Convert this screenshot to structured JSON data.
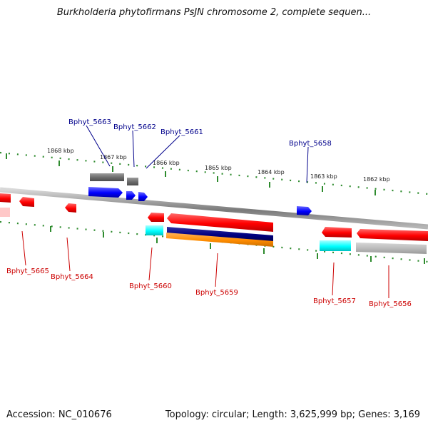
{
  "title": "Burkholderia phytofirmans PsJN chromosome 2, complete sequen...",
  "footer": {
    "accession": "Accession: NC_010676",
    "topology": "Topology: circular; Length: 3,625,999 bp; Genes: 3,169"
  },
  "colors": {
    "forward_gene": "#0000ff",
    "reverse_gene": "#ff0000",
    "forward_label": "#00008b",
    "reverse_label": "#cc0000",
    "tick": "#228b22",
    "grey_feature": "#777777",
    "cyan_feature": "#00ffff",
    "navy_feature": "#000080",
    "orange_feature": "#ff8c00"
  },
  "scale": {
    "ticks_kbp": [
      "1868 kbp",
      "1867 kbp",
      "1866 kbp",
      "1865 kbp",
      "1864 kbp",
      "1863 kbp",
      "1862 kbp"
    ]
  },
  "genes": {
    "forward": [
      "Bphyt_5663",
      "Bphyt_5662",
      "Bphyt_5661",
      "Bphyt_5658"
    ],
    "reverse": [
      "Bphyt_5665",
      "Bphyt_5664",
      "Bphyt_5660",
      "Bphyt_5659",
      "Bphyt_5657",
      "Bphyt_5656"
    ]
  }
}
